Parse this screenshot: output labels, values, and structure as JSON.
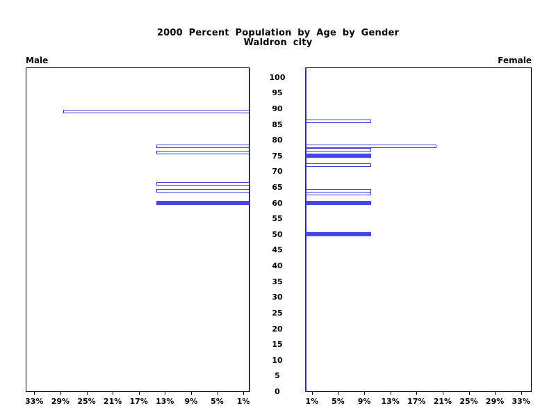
{
  "chart_data": {
    "type": "bar",
    "chart_style": "population-pyramid",
    "title": "2000 Percent Population by Age by Gender",
    "subtitle": "Waldron city",
    "legend": "none",
    "grid": false,
    "age_axis": {
      "min": 0,
      "max": 100,
      "tick_step": 5,
      "tick_labels_top_to_bottom": [
        "100",
        "95",
        "90",
        "85",
        "80",
        "75",
        "70",
        "65",
        "60",
        "55",
        "50",
        "45",
        "40",
        "35",
        "30",
        "25",
        "20",
        "15",
        "10",
        "5",
        "0"
      ]
    },
    "pct_axis": {
      "max_pct": 34,
      "left_panel_tick_labels": [
        "33%",
        "29%",
        "25%",
        "21%",
        "17%",
        "13%",
        "9%",
        "5%",
        "1%"
      ],
      "right_panel_tick_labels": [
        "1%",
        "5%",
        "9%",
        "13%",
        "17%",
        "21%",
        "25%",
        "29%",
        "33%"
      ]
    },
    "series": [
      {
        "name": "Male",
        "side": "left",
        "bars": [
          {
            "age": 89,
            "pct": 28.57,
            "filled": false
          },
          {
            "age": 78,
            "pct": 14.29,
            "filled": false
          },
          {
            "age": 76,
            "pct": 14.29,
            "filled": false
          },
          {
            "age": 66,
            "pct": 14.29,
            "filled": false
          },
          {
            "age": 64,
            "pct": 14.29,
            "filled": false
          },
          {
            "age": 60,
            "pct": 14.29,
            "filled": true
          }
        ]
      },
      {
        "name": "Female",
        "side": "right",
        "bars": [
          {
            "age": 86,
            "pct": 10,
            "filled": false
          },
          {
            "age": 78,
            "pct": 20,
            "filled": false
          },
          {
            "age": 77,
            "pct": 10,
            "filled": false
          },
          {
            "age": 75,
            "pct": 10,
            "filled": true
          },
          {
            "age": 72,
            "pct": 10,
            "filled": false
          },
          {
            "age": 64,
            "pct": 10,
            "filled": false
          },
          {
            "age": 63,
            "pct": 10,
            "filled": false
          },
          {
            "age": 60,
            "pct": 10,
            "filled": true
          },
          {
            "age": 50,
            "pct": 10,
            "filled": true
          }
        ]
      }
    ],
    "colors": {
      "bar_outline": "#3c3cdc",
      "bar_fill": "#4646ea",
      "age_axis_blue": "#2a2ac8",
      "frame_black": "#000000",
      "background": "#ffffff"
    }
  }
}
